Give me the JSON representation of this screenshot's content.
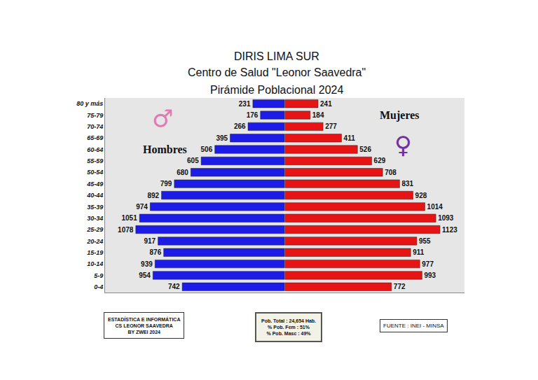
{
  "chart_data": {
    "type": "bar",
    "orientation": "horizontal",
    "title": "DIRIS LIMA SUR",
    "subtitle": [
      "Centro de Salud \"Leonor Saavedra\"",
      "Pirámide Poblacional 2024"
    ],
    "categories": [
      "0-4",
      "5-9",
      "10-14",
      "15-19",
      "20-24",
      "25-29",
      "30-34",
      "35-39",
      "40-44",
      "45-49",
      "50-54",
      "55-59",
      "60-64",
      "65-69",
      "70-74",
      "75-79",
      "80 y más"
    ],
    "series": [
      {
        "name": "Hombres",
        "color": "#1c1ce6",
        "values": [
          742,
          954,
          939,
          876,
          917,
          1078,
          1051,
          974,
          892,
          799,
          680,
          605,
          506,
          395,
          266,
          176,
          231
        ]
      },
      {
        "name": "Mujeres",
        "color": "#e61414",
        "values": [
          772,
          993,
          977,
          911,
          955,
          1123,
          1093,
          1014,
          928,
          831,
          708,
          629,
          526,
          411,
          277,
          184,
          241
        ]
      }
    ],
    "xlim": [
      0,
      1300
    ],
    "data_labels": true,
    "tick_labels": "y",
    "grid": false,
    "annotations": {
      "men_symbol": "♂",
      "women_symbol": "♀",
      "left_box": [
        "ESTADÍSTICA E INFORMÁTICA",
        "CS LEONOR SAAVEDRA",
        "BY ZWEI 2024"
      ],
      "center_box": [
        "Pob. Total : 24,654 Hab.",
        "% Pob. Fem : 51%",
        "% Pob. Masc : 49%"
      ],
      "right_box": [
        "FUENTE : INEI - MINSA"
      ]
    }
  }
}
